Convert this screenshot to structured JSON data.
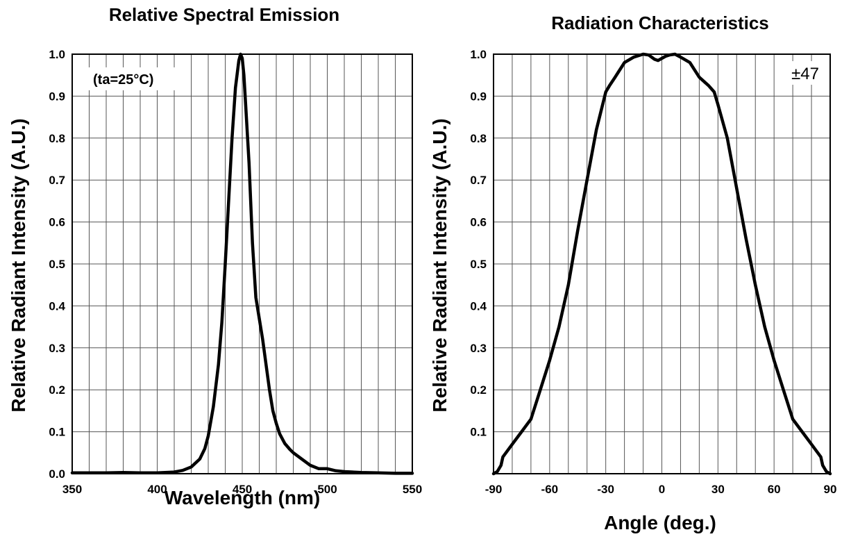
{
  "chart_data": [
    {
      "type": "line",
      "title": "Relative Spectral Emission",
      "xlabel": "Wavelength (nm)",
      "ylabel": "Relative Radiant Intensity (A.U.)",
      "xlim": [
        350,
        550
      ],
      "ylim": [
        0,
        1.0
      ],
      "x_ticks": [
        "350",
        "400",
        "450",
        "500",
        "550"
      ],
      "x_tick_values": [
        350,
        400,
        450,
        500,
        550
      ],
      "y_ticks": [
        "0.0",
        "0.1",
        "0.2",
        "0.3",
        "0.4",
        "0.5",
        "0.6",
        "0.7",
        "0.8",
        "0.9",
        "1.0"
      ],
      "y_tick_values": [
        0,
        0.1,
        0.2,
        0.3,
        0.4,
        0.5,
        0.6,
        0.7,
        0.8,
        0.9,
        1.0
      ],
      "x_grid_step": 10,
      "y_grid_step": 0.1,
      "grid": true,
      "annotation": "(ta=25°C)",
      "annotation_position": "top-left",
      "series": [
        {
          "x": [
            350,
            360,
            370,
            380,
            390,
            400,
            410,
            415,
            420,
            425,
            428,
            430,
            433,
            436,
            438,
            440,
            442,
            444,
            446,
            448,
            449,
            450,
            451,
            452,
            454,
            456,
            458,
            460,
            462,
            464,
            466,
            468,
            470,
            472,
            475,
            478,
            480,
            485,
            490,
            495,
            500,
            505,
            510,
            520,
            530,
            540,
            550
          ],
          "y": [
            0.002,
            0.002,
            0.002,
            0.003,
            0.002,
            0.002,
            0.004,
            0.008,
            0.016,
            0.035,
            0.06,
            0.09,
            0.16,
            0.26,
            0.36,
            0.5,
            0.65,
            0.8,
            0.92,
            0.985,
            1.0,
            0.99,
            0.95,
            0.88,
            0.74,
            0.55,
            0.42,
            0.37,
            0.32,
            0.26,
            0.2,
            0.15,
            0.12,
            0.095,
            0.072,
            0.058,
            0.05,
            0.035,
            0.02,
            0.012,
            0.012,
            0.007,
            0.005,
            0.003,
            0.002,
            0.001,
            0.001
          ]
        }
      ]
    },
    {
      "type": "line",
      "title": "Radiation Characteristics",
      "xlabel": "Angle (deg.)",
      "ylabel": "Relative Radiant Intensity (A.U.)",
      "xlim": [
        -90,
        90
      ],
      "ylim": [
        0,
        1.0
      ],
      "x_ticks": [
        "-90",
        "-60",
        "-30",
        "0",
        "30",
        "60",
        "90"
      ],
      "x_tick_values": [
        -90,
        -60,
        -30,
        0,
        30,
        60,
        90
      ],
      "y_ticks": [
        "0.1",
        "0.2",
        "0.3",
        "0.4",
        "0.5",
        "0.6",
        "0.7",
        "0.8",
        "0.9",
        "1.0"
      ],
      "y_tick_values": [
        0.1,
        0.2,
        0.3,
        0.4,
        0.5,
        0.6,
        0.7,
        0.8,
        0.9,
        1.0
      ],
      "x_grid_step": 10,
      "y_grid_step": 0.1,
      "grid": true,
      "annotation": "±47",
      "annotation_position": "top-right",
      "series": [
        {
          "x": [
            -90,
            -88,
            -86,
            -85,
            -80,
            -75,
            -70,
            -65,
            -60,
            -55,
            -50,
            -45,
            -40,
            -35,
            -30,
            -28,
            -25,
            -20,
            -15,
            -10,
            -7,
            -4,
            -2,
            0,
            2,
            4,
            7,
            10,
            15,
            20,
            25,
            28,
            30,
            35,
            40,
            45,
            50,
            55,
            60,
            65,
            70,
            75,
            80,
            85,
            86,
            88,
            90
          ],
          "y": [
            0.0,
            0.005,
            0.02,
            0.04,
            0.07,
            0.1,
            0.13,
            0.2,
            0.27,
            0.35,
            0.45,
            0.58,
            0.7,
            0.82,
            0.91,
            0.925,
            0.945,
            0.98,
            0.993,
            1.0,
            0.998,
            0.988,
            0.985,
            0.99,
            0.995,
            0.998,
            1.0,
            0.993,
            0.98,
            0.945,
            0.925,
            0.91,
            0.88,
            0.8,
            0.68,
            0.56,
            0.45,
            0.35,
            0.27,
            0.2,
            0.13,
            0.1,
            0.07,
            0.04,
            0.02,
            0.005,
            0.0
          ]
        }
      ]
    }
  ]
}
